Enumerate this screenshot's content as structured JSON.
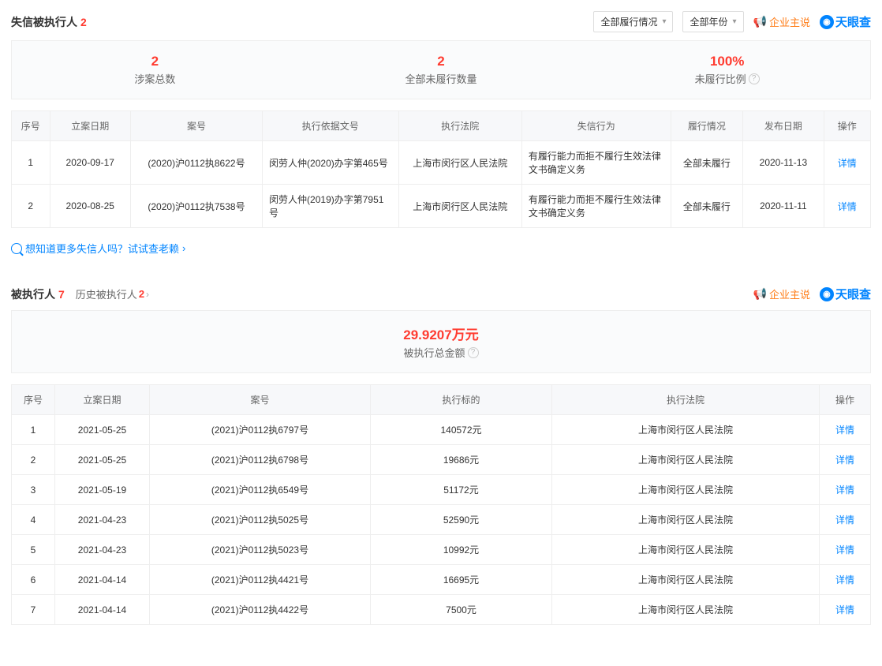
{
  "section1": {
    "title": "失信被执行人",
    "count": "2",
    "filters": {
      "status": "全部履行情况",
      "year": "全部年份"
    },
    "qiye_label": "企业主说",
    "brand_label": "天眼查",
    "stats": [
      {
        "value": "2",
        "label": "涉案总数"
      },
      {
        "value": "2",
        "label": "全部未履行数量"
      },
      {
        "value": "100%",
        "label": "未履行比例"
      }
    ],
    "columns": [
      "序号",
      "立案日期",
      "案号",
      "执行依据文号",
      "执行法院",
      "失信行为",
      "履行情况",
      "发布日期",
      "操作"
    ],
    "rows": [
      {
        "idx": "1",
        "date": "2020-09-17",
        "caseno": "(2020)沪0112执8622号",
        "basis": "闵劳人仲(2020)办字第465号",
        "court": "上海市闵行区人民法院",
        "behavior": "有履行能力而拒不履行生效法律文书确定义务",
        "status": "全部未履行",
        "pub": "2020-11-13",
        "op": "详情"
      },
      {
        "idx": "2",
        "date": "2020-08-25",
        "caseno": "(2020)沪0112执7538号",
        "basis": "闵劳人仲(2019)办字第7951号",
        "court": "上海市闵行区人民法院",
        "behavior": "有履行能力而拒不履行生效法律文书确定义务",
        "status": "全部未履行",
        "pub": "2020-11-11",
        "op": "详情"
      }
    ],
    "footer_link": "想知道更多失信人吗？试试查老赖"
  },
  "section2": {
    "title": "被执行人",
    "count": "7",
    "sub_title": "历史被执行人",
    "sub_count": "2",
    "qiye_label": "企业主说",
    "brand_label": "天眼查",
    "stats": [
      {
        "value": "29.9207万元",
        "label": "被执行总金额"
      }
    ],
    "columns": [
      "序号",
      "立案日期",
      "案号",
      "执行标的",
      "执行法院",
      "操作"
    ],
    "rows": [
      {
        "idx": "1",
        "date": "2021-05-25",
        "caseno": "(2021)沪0112执6797号",
        "amount": "140572元",
        "court": "上海市闵行区人民法院",
        "op": "详情"
      },
      {
        "idx": "2",
        "date": "2021-05-25",
        "caseno": "(2021)沪0112执6798号",
        "amount": "19686元",
        "court": "上海市闵行区人民法院",
        "op": "详情"
      },
      {
        "idx": "3",
        "date": "2021-05-19",
        "caseno": "(2021)沪0112执6549号",
        "amount": "51172元",
        "court": "上海市闵行区人民法院",
        "op": "详情"
      },
      {
        "idx": "4",
        "date": "2021-04-23",
        "caseno": "(2021)沪0112执5025号",
        "amount": "52590元",
        "court": "上海市闵行区人民法院",
        "op": "详情"
      },
      {
        "idx": "5",
        "date": "2021-04-23",
        "caseno": "(2021)沪0112执5023号",
        "amount": "10992元",
        "court": "上海市闵行区人民法院",
        "op": "详情"
      },
      {
        "idx": "6",
        "date": "2021-04-14",
        "caseno": "(2021)沪0112执4421号",
        "amount": "16695元",
        "court": "上海市闵行区人民法院",
        "op": "详情"
      },
      {
        "idx": "7",
        "date": "2021-04-14",
        "caseno": "(2021)沪0112执4422号",
        "amount": "7500元",
        "court": "上海市闵行区人民法院",
        "op": "详情"
      }
    ]
  }
}
